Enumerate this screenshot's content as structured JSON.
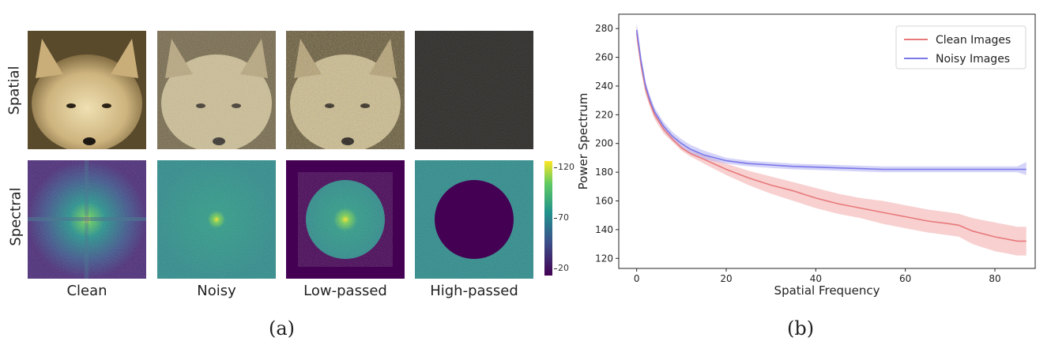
{
  "panel_a": {
    "row_labels": [
      "Spatial",
      "Spectral"
    ],
    "column_labels": [
      "Clean",
      "Noisy",
      "Low-passed",
      "High-passed"
    ],
    "colorbar_ticks": [
      "120",
      "70",
      "20"
    ],
    "caption": "(a)"
  },
  "panel_b": {
    "caption": "(b)"
  },
  "chart_data": {
    "type": "line",
    "title": "",
    "xlabel": "Spatial Frequency",
    "ylabel": "Power Spectrum",
    "xlim": [
      -4,
      89
    ],
    "ylim": [
      113,
      290
    ],
    "xticks": [
      0,
      20,
      40,
      60,
      80
    ],
    "yticks": [
      120,
      140,
      160,
      180,
      200,
      220,
      240,
      260,
      280
    ],
    "grid": false,
    "legend": "top-right",
    "series": [
      {
        "name": "Clean Images",
        "color": "#e8797b",
        "fill": "#f3a9aa",
        "x": [
          0,
          1,
          2,
          3,
          4,
          6,
          8,
          10,
          12,
          15,
          20,
          25,
          30,
          35,
          40,
          45,
          50,
          55,
          60,
          65,
          70,
          72,
          75,
          80,
          85,
          87
        ],
        "y": [
          277,
          255,
          238,
          228,
          220,
          210,
          203,
          197,
          193,
          189,
          182,
          176,
          171,
          167,
          162,
          158,
          155,
          152,
          149,
          146,
          144,
          143,
          139,
          135,
          132,
          132
        ],
        "upper": [
          283,
          260,
          242,
          231,
          223,
          213,
          205,
          199,
          195,
          192,
          186,
          181,
          177,
          173,
          169,
          165,
          162,
          160,
          157,
          154,
          152,
          151,
          148,
          145,
          142,
          142
        ],
        "lower": [
          271,
          250,
          234,
          225,
          217,
          207,
          201,
          195,
          191,
          186,
          178,
          171,
          165,
          160,
          155,
          151,
          148,
          144,
          141,
          138,
          136,
          135,
          130,
          125,
          122,
          122
        ]
      },
      {
        "name": "Noisy Images",
        "color": "#7b78e8",
        "fill": "#b0aef2",
        "x": [
          0,
          1,
          2,
          3,
          4,
          6,
          8,
          10,
          12,
          15,
          20,
          25,
          30,
          35,
          40,
          45,
          50,
          55,
          60,
          65,
          70,
          75,
          80,
          85,
          87
        ],
        "y": [
          279,
          257,
          240,
          230,
          222,
          212,
          205,
          200,
          196,
          192,
          188,
          186,
          185,
          184,
          183.5,
          183,
          182.5,
          182,
          182,
          182,
          182,
          182,
          182,
          182,
          182
        ],
        "upper": [
          284,
          261,
          243,
          233,
          225,
          215,
          208,
          203,
          199,
          195,
          190,
          188,
          187,
          186,
          185.5,
          185,
          184.5,
          184,
          184,
          184,
          184,
          184,
          184,
          184,
          187
        ],
        "lower": [
          274,
          253,
          237,
          227,
          219,
          209,
          202,
          197,
          193,
          189,
          186,
          184,
          183,
          182,
          181.5,
          181,
          180.5,
          180,
          180,
          180,
          180,
          180,
          180,
          180,
          178
        ]
      }
    ]
  }
}
